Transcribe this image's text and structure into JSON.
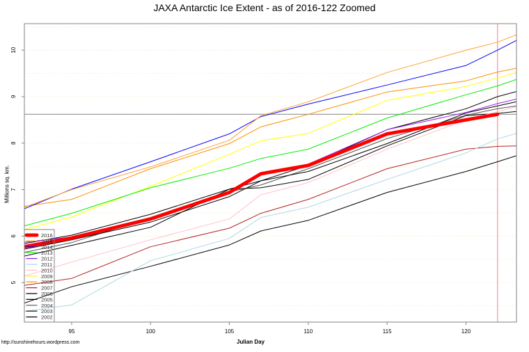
{
  "chart_data": {
    "type": "line",
    "title": "JAXA Antarctic Ice Extent - as of 2016-122 Zoomed",
    "xlabel": "Julian Day",
    "ylabel": "Millions sq. km.",
    "xlim": [
      92,
      123.2
    ],
    "ylim": [
      4.15,
      10.57
    ],
    "xticks": [
      95,
      100,
      105,
      110,
      115,
      120
    ],
    "yticks": [
      5,
      6,
      7,
      8,
      9,
      10
    ],
    "grid": "faint horizontal every 0.5",
    "legend_position": "bottom-left",
    "reference_lines": {
      "horizontal_y": 8.62,
      "vertical_x": 122,
      "vertical_color": "#e88080",
      "horizontal_color": "#808080"
    },
    "x": [
      92,
      95,
      100,
      105,
      107,
      110,
      115,
      120,
      122,
      123.2
    ],
    "series": [
      {
        "name": "2016",
        "color": "#ff0000",
        "width": 5,
        "values": [
          5.77,
          5.96,
          6.37,
          6.94,
          7.34,
          7.52,
          8.2,
          8.5,
          8.62,
          null
        ]
      },
      {
        "name": "2015",
        "color": "#ffa030",
        "width": 1,
        "values": [
          6.62,
          7.0,
          7.49,
          8.06,
          8.59,
          8.89,
          9.52,
          10.0,
          10.17,
          10.33
        ]
      },
      {
        "name": "2014",
        "color": "#0000ff",
        "width": 1,
        "values": [
          6.59,
          7.01,
          7.6,
          8.2,
          8.57,
          8.84,
          9.25,
          9.67,
          10.0,
          10.21
        ]
      },
      {
        "name": "2013",
        "color": "#00ee00",
        "width": 1,
        "values": [
          6.22,
          6.49,
          7.04,
          7.46,
          7.67,
          7.87,
          8.54,
          9.04,
          9.23,
          9.37
        ]
      },
      {
        "name": "2012",
        "color": "#a020f0",
        "width": 1,
        "values": [
          5.87,
          5.98,
          6.38,
          6.95,
          7.33,
          7.55,
          8.29,
          8.66,
          8.85,
          8.95
        ]
      },
      {
        "name": "2011",
        "color": "#add8e6",
        "width": 1,
        "values": [
          4.38,
          4.52,
          5.47,
          5.95,
          6.4,
          6.62,
          7.22,
          7.79,
          8.09,
          8.21
        ]
      },
      {
        "name": "2010",
        "color": "#ffc0cb",
        "width": 1,
        "values": [
          5.14,
          5.44,
          5.92,
          6.37,
          6.89,
          7.15,
          7.87,
          8.5,
          8.68,
          8.78
        ]
      },
      {
        "name": "2009",
        "color": "#ffff00",
        "width": 1,
        "values": [
          6.14,
          6.41,
          7.07,
          7.76,
          8.05,
          8.21,
          8.92,
          9.22,
          9.4,
          9.52
        ]
      },
      {
        "name": "2008",
        "color": "#ff8c00",
        "width": 1,
        "values": [
          6.64,
          6.79,
          7.45,
          7.99,
          8.35,
          8.62,
          9.1,
          9.34,
          9.53,
          9.61
        ]
      },
      {
        "name": "2007",
        "color": "#b22222",
        "width": 1,
        "values": [
          4.94,
          5.09,
          5.77,
          6.17,
          6.49,
          6.79,
          7.45,
          7.87,
          7.93,
          7.94
        ]
      },
      {
        "name": "2006",
        "color": "#000000",
        "width": 1,
        "values": [
          5.84,
          6.02,
          6.47,
          7.01,
          7.19,
          7.52,
          8.29,
          8.74,
          9.0,
          9.11
        ]
      },
      {
        "name": "2005",
        "color": "#000000",
        "width": 1,
        "values": [
          5.72,
          5.92,
          6.3,
          6.85,
          7.19,
          7.39,
          7.99,
          8.65,
          8.8,
          8.89
        ]
      },
      {
        "name": "2004",
        "color": "#555555",
        "width": 1,
        "values": [
          5.65,
          5.86,
          6.4,
          6.95,
          7.1,
          7.45,
          8.1,
          8.6,
          8.74,
          8.8
        ]
      },
      {
        "name": "2003",
        "color": "#000000",
        "width": 1,
        "values": [
          5.57,
          5.8,
          6.19,
          7.01,
          7.04,
          7.22,
          7.94,
          8.59,
          8.64,
          8.68
        ]
      },
      {
        "name": "2002",
        "color": "#000000",
        "width": 1,
        "values": [
          4.56,
          4.91,
          5.35,
          5.81,
          6.11,
          6.34,
          6.94,
          7.39,
          7.6,
          7.73
        ]
      }
    ]
  },
  "footer": "http://sunshinehours.wordpress.com"
}
